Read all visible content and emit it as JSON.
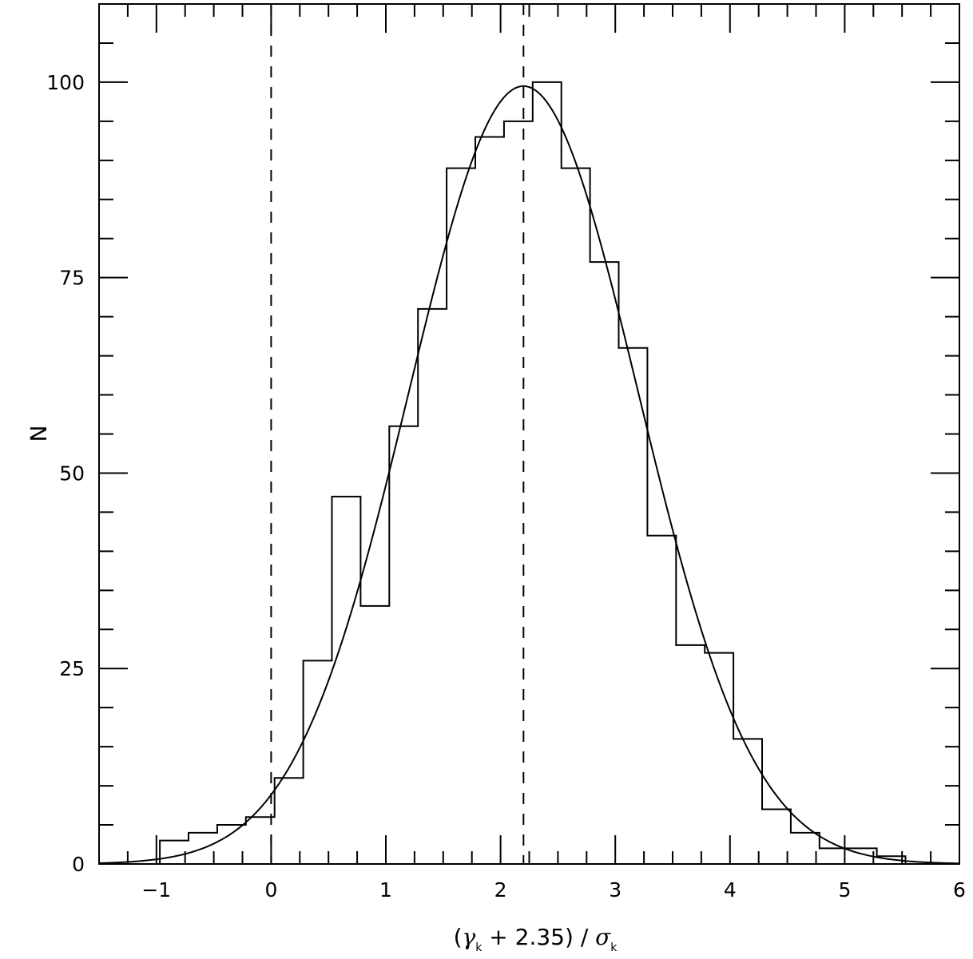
{
  "chart_data": {
    "type": "bar",
    "xlabel": {
      "pre": "(",
      "gamma": "γ",
      "sub1": "k",
      "mid": " + 2.35) / ",
      "sigma": "σ",
      "sub2": "k"
    },
    "ylabel": "N",
    "xlim": [
      -1.5,
      6
    ],
    "ylim": [
      0,
      110
    ],
    "x_ticks": [
      -1,
      0,
      1,
      2,
      3,
      4,
      5,
      6
    ],
    "x_tick_labels": [
      "−1",
      "0",
      "1",
      "2",
      "3",
      "4",
      "5",
      "6"
    ],
    "y_ticks": [
      0,
      25,
      50,
      75,
      100
    ],
    "y_tick_labels": [
      "0",
      "25",
      "50",
      "75",
      "100"
    ],
    "histogram": {
      "bin_edges": [
        -0.97,
        -0.72,
        -0.47,
        -0.22,
        0.03,
        0.28,
        0.53,
        0.78,
        1.03,
        1.28,
        1.53,
        1.78,
        2.03,
        2.28,
        2.53,
        2.78,
        3.03,
        3.28,
        3.53,
        3.78,
        4.03,
        4.28,
        4.53,
        4.78,
        5.03,
        5.28,
        5.53
      ],
      "counts": [
        3,
        4,
        5,
        6,
        11,
        26,
        47,
        33,
        56,
        71,
        89,
        93,
        95,
        100,
        89,
        77,
        66,
        42,
        28,
        27,
        16,
        7,
        4,
        2,
        2,
        1
      ]
    },
    "gaussian_fit": {
      "mean": 2.2,
      "sigma": 1.0,
      "amplitude": 99.5
    },
    "vertical_lines": [
      0,
      2.2
    ],
    "grid": false
  }
}
